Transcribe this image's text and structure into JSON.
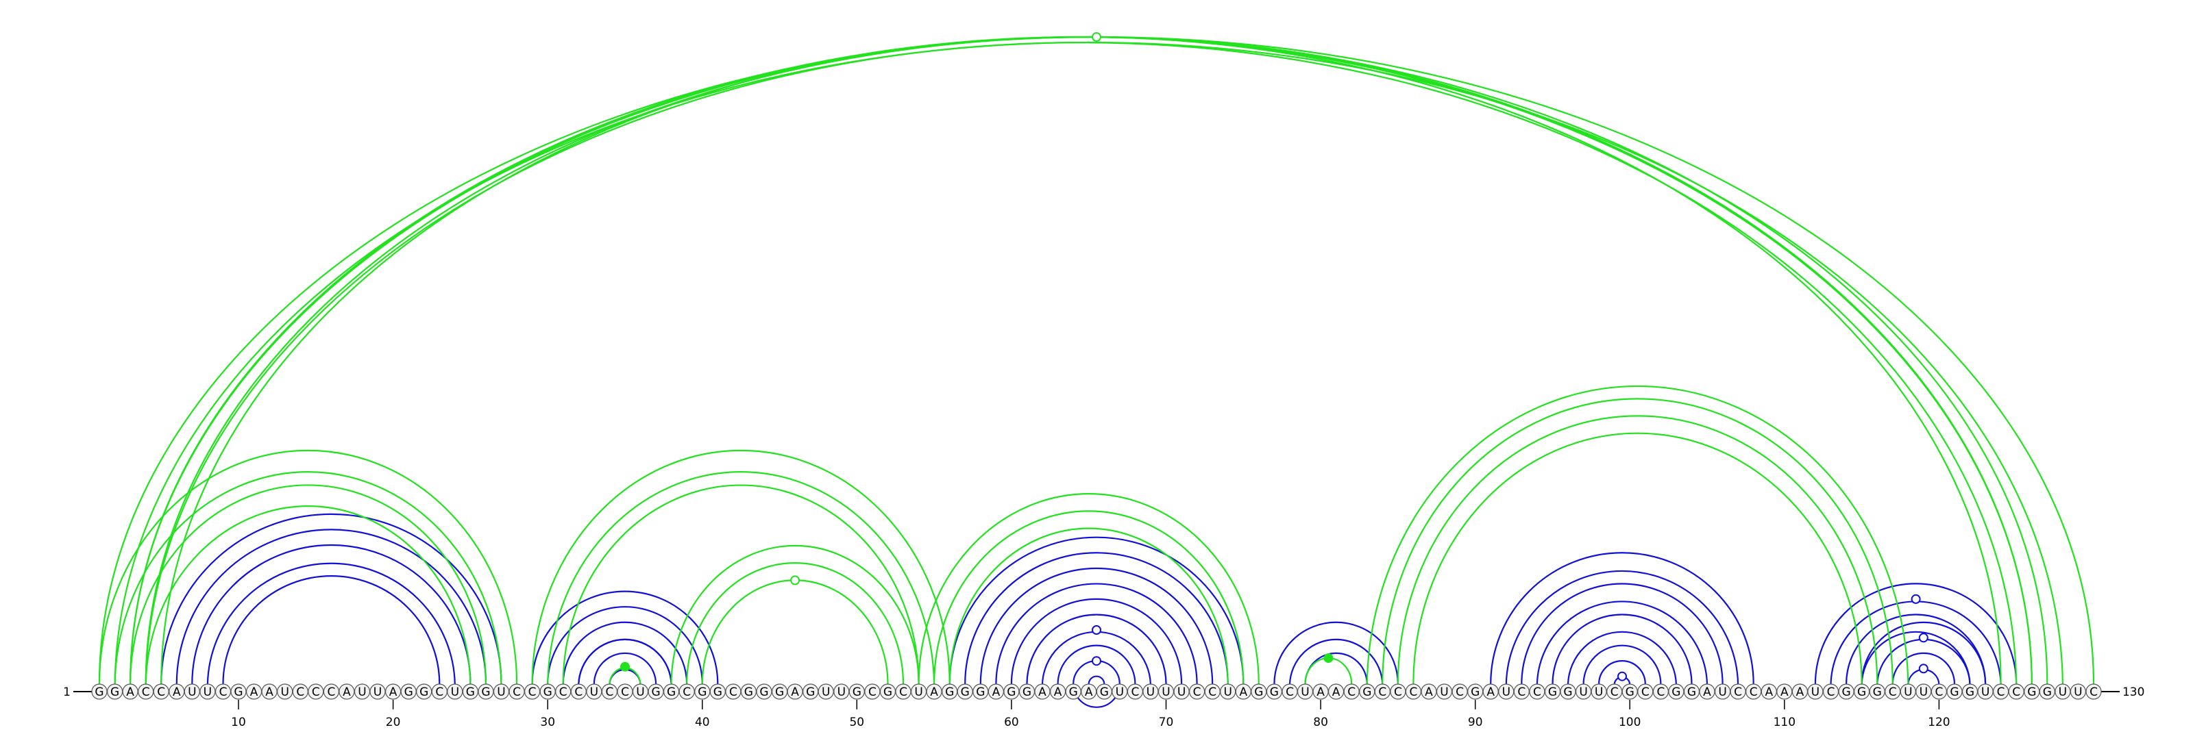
{
  "diagram": {
    "type": "rna-arc-diagram",
    "sequence": "GGACCAUUCGAAUCCCAUUAGGCUGGUCCGCCUCCUGGCGGCGGGAGUUGCGCUAGGGAGGAAGAGUCUUUCCUAGGCUAACGCCCAUCGAUCCGGUUCGCCGGAUCCAAAUCGGGCUUCGGUCCGGUUC",
    "start_label": "1",
    "end_label": "130",
    "axis": {
      "ticks": [
        10,
        20,
        30,
        40,
        50,
        60,
        70,
        80,
        90,
        100,
        110,
        120
      ]
    },
    "colors": {
      "green": "#22e21e",
      "blue": "#1010d8",
      "marker_fill": "#ffffff",
      "circle_fill": "#f2f2f2"
    },
    "green_stacks": [
      {
        "i": 1,
        "j": 130,
        "n": 1
      },
      {
        "i": 2,
        "j": 128,
        "n": 3
      },
      {
        "i": 3,
        "j": 126,
        "n": 3
      },
      {
        "i": 1,
        "j": 28,
        "n": 4
      },
      {
        "i": 29,
        "j": 56,
        "n": 3
      },
      {
        "i": 38,
        "j": 54,
        "n": 3
      },
      {
        "i": 34,
        "j": 36,
        "n": 1
      },
      {
        "i": 54,
        "j": 76,
        "n": 3
      },
      {
        "i": 79,
        "j": 82,
        "n": 1
      },
      {
        "i": 83,
        "j": 118,
        "n": 4
      }
    ],
    "blue_stacks": [
      {
        "i": 5,
        "j": 27,
        "n": 5
      },
      {
        "i": 29,
        "j": 41,
        "n": 4
      },
      {
        "i": 32,
        "j": 38,
        "n": 3
      },
      {
        "i": 56,
        "j": 75,
        "n": 12
      },
      {
        "i": 77,
        "j": 85,
        "n": 3
      },
      {
        "i": 91,
        "j": 108,
        "n": 9
      },
      {
        "i": 112,
        "j": 125,
        "n": 4
      },
      {
        "i": 115,
        "j": 123,
        "n": 4
      }
    ],
    "markers": [
      {
        "i": 1,
        "j": 130,
        "off": 1,
        "fill": "marker"
      },
      {
        "i": 38,
        "j": 54,
        "off": 2,
        "fill": "marker"
      },
      {
        "i": 34,
        "j": 36,
        "off": 0,
        "fill": "green"
      },
      {
        "i": 79,
        "j": 82,
        "off": 0,
        "fill": "green"
      },
      {
        "i": 56,
        "j": 75,
        "off": 6,
        "fill": "marker"
      },
      {
        "i": 56,
        "j": 75,
        "off": 8,
        "fill": "marker"
      },
      {
        "i": 91,
        "j": 108,
        "off": 8,
        "fill": "marker"
      },
      {
        "i": 112,
        "j": 125,
        "off": 1,
        "fill": "marker"
      },
      {
        "i": 115,
        "j": 123,
        "off": 1,
        "fill": "marker"
      },
      {
        "i": 115,
        "j": 123,
        "off": 3,
        "fill": "marker"
      }
    ]
  }
}
